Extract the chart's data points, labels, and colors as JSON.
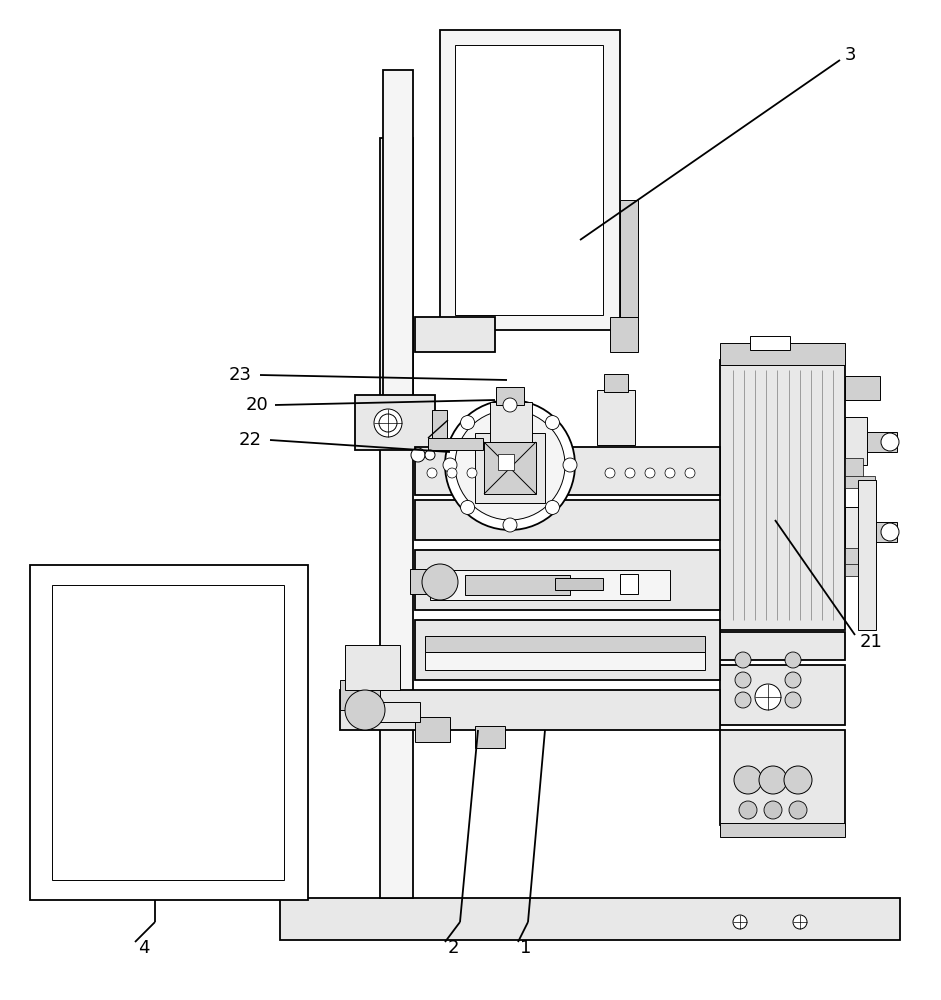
{
  "bg": "#ffffff",
  "lc": "#000000",
  "g1": "#e8e8e8",
  "g2": "#d0d0d0",
  "g3": "#f5f5f5",
  "g4": "#c8c8c8",
  "label_fs": 13,
  "lw_main": 1.3,
  "lw_thin": 0.7,
  "lw_med": 1.0
}
